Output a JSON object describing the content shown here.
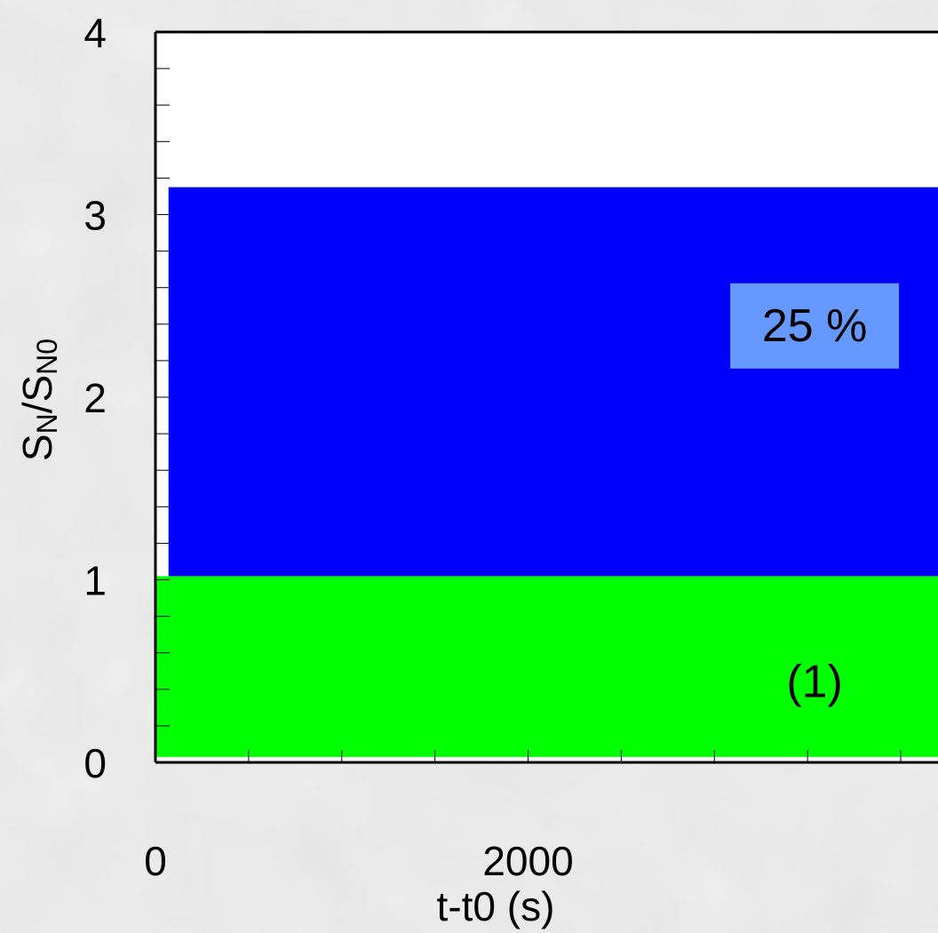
{
  "chart_data": {
    "type": "area",
    "title": "",
    "xlabel": "t-t0 (s)",
    "ylabel": {
      "base": "S",
      "sub1": "N",
      "sep": "/S",
      "sub2": "N0"
    },
    "xlim": [
      0,
      4200
    ],
    "ylim": [
      0,
      4
    ],
    "x_ticks": [
      0,
      2000
    ],
    "y_ticks": [
      0,
      1,
      2,
      3,
      4
    ],
    "grid": false,
    "regions": [
      {
        "label": "(1)",
        "y_from": 0.03,
        "y_to": 1.02,
        "x_from": 0,
        "color": "#00ff00"
      },
      {
        "label": "25 %",
        "y_from": 1.02,
        "y_to": 3.15,
        "x_from": 70,
        "color": "#0000ff",
        "label_box_color": "#6699ff"
      }
    ],
    "annotations": [
      {
        "text": "25 %",
        "x": 3800,
        "y": 2.4
      },
      {
        "text": "(1)",
        "x": 3800,
        "y": 0.45
      }
    ],
    "colors": {
      "axis": "#000000",
      "plot_bg": "#ffffff"
    }
  }
}
